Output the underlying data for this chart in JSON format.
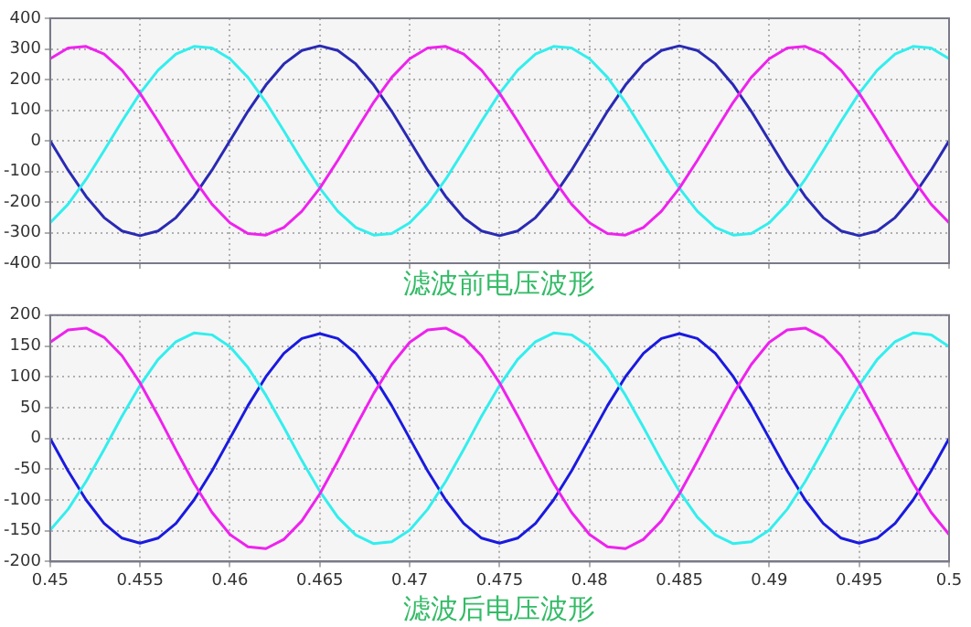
{
  "chart_data": [
    {
      "type": "line",
      "xlabel": "滤波前电压波形",
      "xlim": [
        0.45,
        0.5
      ],
      "xticks": [
        0.45,
        0.455,
        0.46,
        0.465,
        0.47,
        0.475,
        0.48,
        0.485,
        0.49,
        0.495,
        0.5
      ],
      "ylim": [
        -400,
        400
      ],
      "yticks": [
        -400,
        -300,
        -200,
        -100,
        0,
        100,
        200,
        300,
        400
      ],
      "grid": true,
      "tick_labels": "y",
      "x": [
        0.45,
        0.451,
        0.452,
        0.453,
        0.454,
        0.455,
        0.456,
        0.457,
        0.458,
        0.459,
        0.46,
        0.461,
        0.462,
        0.463,
        0.464,
        0.465,
        0.466,
        0.467,
        0.468,
        0.469,
        0.47,
        0.471,
        0.472,
        0.473,
        0.474,
        0.475,
        0.476,
        0.477,
        0.478,
        0.479,
        0.48,
        0.481,
        0.482,
        0.483,
        0.484,
        0.485,
        0.486,
        0.487,
        0.488,
        0.489,
        0.49,
        0.491,
        0.492,
        0.493,
        0.494,
        0.495,
        0.496,
        0.497,
        0.498,
        0.499,
        0.5
      ],
      "series": [
        {
          "color": "#ee22ee",
          "values": [
            268,
            303,
            308,
            283,
            230,
            155,
            64,
            -32,
            -126,
            -207,
            -268,
            -303,
            -308,
            -283,
            -230,
            -155,
            -64,
            32,
            126,
            207,
            268,
            303,
            308,
            283,
            230,
            155,
            64,
            -32,
            -126,
            -207,
            -268,
            -303,
            -308,
            -283,
            -230,
            -155,
            -64,
            32,
            126,
            207,
            268,
            303,
            308,
            283,
            230,
            155,
            64,
            -32,
            -126,
            -207,
            -268
          ]
        },
        {
          "color": "#33eeee",
          "values": [
            -268,
            -207,
            -126,
            -32,
            64,
            155,
            230,
            283,
            308,
            303,
            268,
            207,
            126,
            32,
            -64,
            -155,
            -230,
            -283,
            -308,
            -303,
            -268,
            -207,
            -126,
            -32,
            64,
            155,
            230,
            283,
            308,
            303,
            268,
            207,
            126,
            32,
            -64,
            -155,
            -230,
            -283,
            -308,
            -303,
            -268,
            -207,
            -126,
            -32,
            64,
            155,
            230,
            283,
            308,
            303,
            268
          ]
        },
        {
          "color": "#2a2ab4",
          "values": [
            0,
            -96,
            -182,
            -251,
            -295,
            -310,
            -295,
            -251,
            -182,
            -96,
            0,
            96,
            182,
            251,
            295,
            310,
            295,
            251,
            182,
            96,
            0,
            -96,
            -182,
            -251,
            -295,
            -310,
            -295,
            -251,
            -182,
            -96,
            0,
            96,
            182,
            251,
            295,
            310,
            295,
            251,
            182,
            96,
            0,
            -96,
            -182,
            -251,
            -295,
            -310,
            -295,
            -251,
            -182,
            -96,
            0
          ]
        }
      ]
    },
    {
      "type": "line",
      "xlabel": "滤波后电压波形",
      "xlim": [
        0.45,
        0.5
      ],
      "xticks": [
        0.45,
        0.455,
        0.46,
        0.465,
        0.47,
        0.475,
        0.48,
        0.485,
        0.49,
        0.495,
        0.5
      ],
      "ylim": [
        -200,
        200
      ],
      "yticks": [
        -200,
        -150,
        -100,
        -50,
        0,
        50,
        100,
        150,
        200
      ],
      "grid": true,
      "x": [
        0.45,
        0.451,
        0.452,
        0.453,
        0.454,
        0.455,
        0.456,
        0.457,
        0.458,
        0.459,
        0.46,
        0.461,
        0.462,
        0.463,
        0.464,
        0.465,
        0.466,
        0.467,
        0.468,
        0.469,
        0.47,
        0.471,
        0.472,
        0.473,
        0.474,
        0.475,
        0.476,
        0.477,
        0.478,
        0.479,
        0.48,
        0.481,
        0.482,
        0.483,
        0.484,
        0.485,
        0.486,
        0.487,
        0.488,
        0.489,
        0.49,
        0.491,
        0.492,
        0.493,
        0.494,
        0.495,
        0.496,
        0.497,
        0.498,
        0.499,
        0.5
      ],
      "series": [
        {
          "color": "#ee22ee",
          "values": [
            156,
            176,
            179,
            164,
            134,
            90,
            37,
            -19,
            -73,
            -120,
            -156,
            -176,
            -179,
            -164,
            -134,
            -90,
            -37,
            19,
            73,
            120,
            156,
            176,
            179,
            164,
            134,
            90,
            37,
            -19,
            -73,
            -120,
            -156,
            -176,
            -179,
            -164,
            -134,
            -90,
            -37,
            19,
            73,
            120,
            156,
            176,
            179,
            164,
            134,
            90,
            37,
            -19,
            -73,
            -120,
            -156
          ]
        },
        {
          "color": "#33eeee",
          "values": [
            -149,
            -115,
            -70,
            -18,
            36,
            86,
            128,
            157,
            171,
            168,
            149,
            115,
            70,
            18,
            -36,
            -86,
            -128,
            -157,
            -171,
            -168,
            -149,
            -115,
            -70,
            -18,
            36,
            86,
            128,
            157,
            171,
            168,
            149,
            115,
            70,
            18,
            -36,
            -86,
            -128,
            -157,
            -171,
            -168,
            -149,
            -115,
            -70,
            -18,
            36,
            86,
            128,
            157,
            171,
            168,
            149
          ]
        },
        {
          "color": "#1a1ae0",
          "values": [
            0,
            -53,
            -100,
            -138,
            -162,
            -170,
            -162,
            -138,
            -100,
            -53,
            0,
            53,
            100,
            138,
            162,
            170,
            162,
            138,
            100,
            53,
            0,
            -53,
            -100,
            -138,
            -162,
            -170,
            -162,
            -138,
            -100,
            -53,
            0,
            53,
            100,
            138,
            162,
            170,
            162,
            138,
            100,
            53,
            0,
            -53,
            -100,
            -138,
            -162,
            -170,
            -162,
            -138,
            -100,
            -53,
            0
          ]
        }
      ]
    }
  ]
}
